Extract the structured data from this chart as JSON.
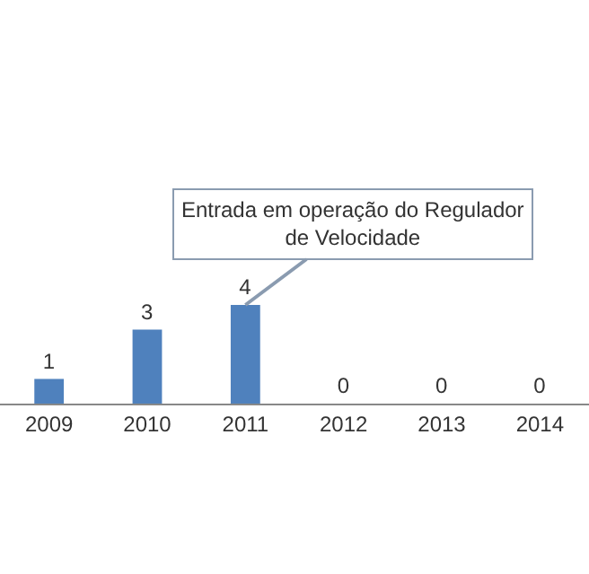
{
  "chart_data": {
    "type": "bar",
    "categories": [
      "2009",
      "2010",
      "2011",
      "2012",
      "2013",
      "2014"
    ],
    "values": [
      1,
      3,
      4,
      0,
      0,
      0
    ],
    "color": "#4f81bd",
    "data_labels": true,
    "grid": false,
    "legend": false,
    "tick_labels": "x",
    "annotations": [
      {
        "text": "Entrada em operação do Regulador de Velocidade",
        "x": "2011",
        "y": 4
      }
    ]
  }
}
